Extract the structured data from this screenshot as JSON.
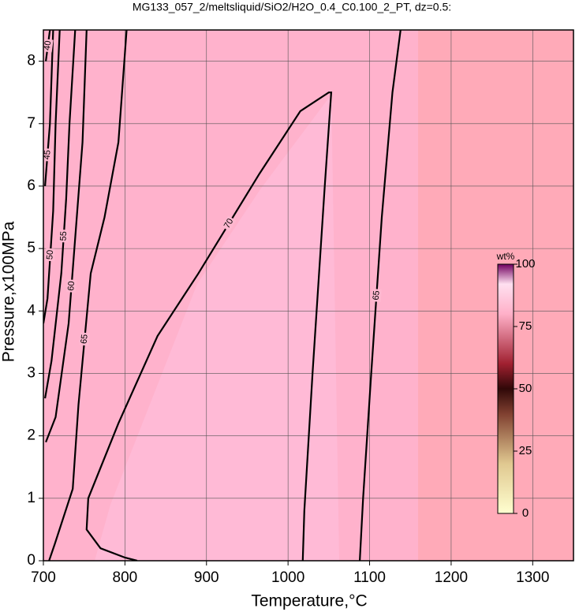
{
  "chart_data": {
    "type": "contour",
    "title": "MG133_057_2/meltsliquid/SiO2/H2O_0.4_C0.100_2_PT, dz=0.5:",
    "xlabel": "Temperature,°C",
    "ylabel": "Pressure,x100MPa",
    "xlim": [
      700,
      1350
    ],
    "ylim": [
      0,
      8.5
    ],
    "xticks": [
      700,
      800,
      900,
      1000,
      1100,
      1200,
      1300
    ],
    "yticks": [
      0,
      1,
      2,
      3,
      4,
      5,
      6,
      7,
      8
    ],
    "grid": true,
    "contours": [
      {
        "level": 70,
        "x": [
          1018,
          1020,
          1030,
          1045,
          1053,
          1050,
          1015,
          965,
          890,
          840,
          792,
          755,
          753,
          770,
          800,
          815
        ],
        "y": [
          0,
          0.8,
          3,
          6,
          7.5,
          7.5,
          7.2,
          6.2,
          4.6,
          3.6,
          2.2,
          1.0,
          0.5,
          0.2,
          0.05,
          0
        ]
      },
      {
        "level": 65,
        "x": [
          1088,
          1092,
          1102,
          1115,
          1128,
          1138
        ],
        "y": [
          0,
          1,
          3,
          5.5,
          7.5,
          8.5
        ]
      },
      {
        "level": 65,
        "x": [
          802,
          792,
          775,
          758,
          743,
          736,
          714,
          707
        ],
        "y": [
          8.5,
          6.7,
          5.5,
          4.6,
          2.5,
          1.15,
          0.27,
          0
        ]
      },
      {
        "level": 60,
        "x": [
          753,
          748,
          738,
          731,
          715,
          703
        ],
        "y": [
          8.5,
          6.7,
          5.0,
          3.8,
          2.3,
          1.9
        ]
      },
      {
        "level": 55,
        "x": [
          739,
          732,
          728,
          722,
          710,
          702
        ],
        "y": [
          8.5,
          7.0,
          5.8,
          4.6,
          3.2,
          2.6
        ]
      },
      {
        "level": 50,
        "x": [
          720,
          715,
          712,
          705,
          700
        ],
        "y": [
          8.5,
          7.0,
          5.6,
          4.2,
          3.8
        ]
      },
      {
        "level": 45,
        "x": [
          712,
          708,
          702
        ],
        "y": [
          8.5,
          7.0,
          6.0
        ]
      },
      {
        "level": 40,
        "x": [
          708,
          703
        ],
        "y": [
          8.5,
          8.0
        ]
      }
    ],
    "colorbar": {
      "label": "wt%",
      "lim": [
        0,
        100
      ],
      "ticks": [
        0,
        25,
        50,
        75,
        100
      ]
    }
  }
}
